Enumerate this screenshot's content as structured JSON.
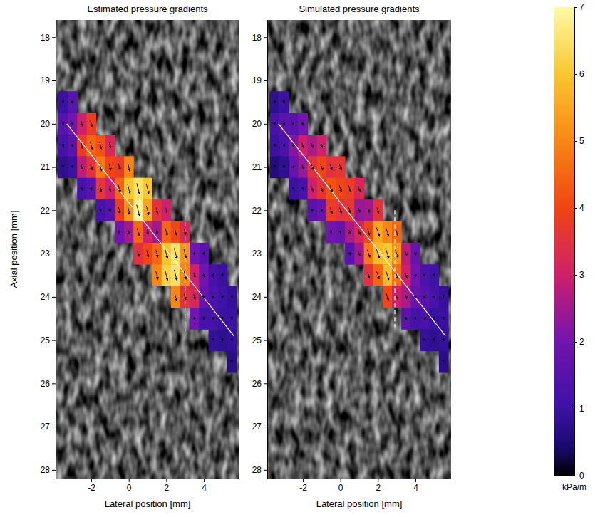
{
  "chart_data": [
    {
      "type": "heatmap",
      "title": "Estimated pressure gradients",
      "xlabel": "Lateral position [mm]",
      "ylabel": "Axial position [mm]",
      "xlim": [
        -3.9,
        5.9
      ],
      "ylim": [
        17.6,
        28.2
      ],
      "xticks": [
        -2,
        0,
        2,
        4
      ],
      "yticks": [
        18,
        19,
        20,
        21,
        22,
        23,
        24,
        25,
        26,
        27,
        28
      ],
      "cell_size": [
        0.5,
        0.5
      ],
      "arrow_direction": [
        0.6,
        1
      ],
      "centerline": [
        [
          -3.3,
          20.0
        ],
        [
          5.6,
          24.9
        ]
      ],
      "profile_line": [
        [
          3.0,
          22.1
        ],
        [
          3.0,
          24.8
        ]
      ],
      "cells": [
        [
          -3.5,
          19.5,
          1.0
        ],
        [
          -3.5,
          20,
          1.5
        ],
        [
          -3.5,
          20.5,
          1.2
        ],
        [
          -3.5,
          21,
          0.8
        ],
        [
          -3,
          19.5,
          1.5
        ],
        [
          -3,
          20,
          2.0
        ],
        [
          -3,
          20.5,
          1.6
        ],
        [
          -3,
          21,
          1.0
        ],
        [
          -2.5,
          20,
          3.0
        ],
        [
          -2.5,
          20.5,
          3.8
        ],
        [
          -2.5,
          21,
          2.8
        ],
        [
          -2.5,
          21.5,
          1.2
        ],
        [
          -2,
          20,
          3.8
        ],
        [
          -2,
          20.5,
          4.5
        ],
        [
          -2,
          21,
          3.5
        ],
        [
          -2,
          21.5,
          1.5
        ],
        [
          -1.5,
          20.5,
          4.2
        ],
        [
          -1.5,
          21,
          4.8
        ],
        [
          -1.5,
          21.5,
          3.6
        ],
        [
          -1.5,
          22,
          1.2
        ],
        [
          -1,
          20.5,
          3.2
        ],
        [
          -1,
          21,
          4.0
        ],
        [
          -1,
          21.5,
          3.0
        ],
        [
          -1,
          22,
          1.5
        ],
        [
          -0.5,
          21,
          3.8
        ],
        [
          -0.5,
          21.5,
          4.5
        ],
        [
          -0.5,
          22,
          3.8
        ],
        [
          -0.5,
          22.5,
          2.0
        ],
        [
          0,
          21,
          5.0
        ],
        [
          0,
          21.5,
          6.0
        ],
        [
          0,
          22,
          5.2
        ],
        [
          0,
          22.5,
          2.5
        ],
        [
          0.5,
          21.5,
          6.5
        ],
        [
          0.5,
          22,
          6.8
        ],
        [
          0.5,
          22.5,
          4.5
        ],
        [
          0.5,
          23,
          3.5
        ],
        [
          1,
          21.5,
          6.0
        ],
        [
          1,
          22,
          5.5
        ],
        [
          1,
          22.5,
          3.0
        ],
        [
          1,
          23,
          4.0
        ],
        [
          1.5,
          22,
          3.5
        ],
        [
          1.5,
          22.5,
          2.5
        ],
        [
          1.5,
          23,
          4.5
        ],
        [
          1.5,
          23.5,
          5.0
        ],
        [
          2,
          22,
          3.0
        ],
        [
          2,
          22.5,
          4.5
        ],
        [
          2,
          23,
          6.0
        ],
        [
          2,
          23.5,
          6.2
        ],
        [
          2.5,
          22.5,
          4.0
        ],
        [
          2.5,
          23,
          6.5
        ],
        [
          2.5,
          23.5,
          6.5
        ],
        [
          2.5,
          24,
          5.0
        ],
        [
          3,
          22.5,
          3.2
        ],
        [
          3,
          23,
          5.2
        ],
        [
          3,
          23.5,
          5.0
        ],
        [
          3,
          24,
          3.5
        ],
        [
          3.5,
          23,
          2.0
        ],
        [
          3.5,
          23.5,
          3.0
        ],
        [
          3.5,
          24,
          3.2
        ],
        [
          3.5,
          24.5,
          2.0
        ],
        [
          4,
          23,
          1.5
        ],
        [
          4,
          23.5,
          2.0
        ],
        [
          4,
          24,
          1.8
        ],
        [
          4,
          24.5,
          1.2
        ],
        [
          4.5,
          23.5,
          1.2
        ],
        [
          4.5,
          24,
          1.3
        ],
        [
          4.5,
          24.5,
          1.2
        ],
        [
          4.5,
          25,
          0.9
        ],
        [
          5,
          23.5,
          1.0
        ],
        [
          5,
          24,
          1.1
        ],
        [
          5,
          24.5,
          1.0
        ],
        [
          5,
          25,
          0.8
        ],
        [
          5.5,
          24,
          0.9
        ],
        [
          5.5,
          24.5,
          1.0
        ],
        [
          5.5,
          25,
          0.9
        ],
        [
          5.5,
          25.5,
          0.7
        ]
      ]
    },
    {
      "type": "heatmap",
      "title": "Simulated pressure gradients",
      "xlabel": "Lateral position [mm]",
      "xlim": [
        -3.9,
        5.9
      ],
      "ylim": [
        17.6,
        28.2
      ],
      "xticks": [
        -2,
        0,
        2,
        4
      ],
      "yticks": [
        18,
        19,
        20,
        21,
        22,
        23,
        24,
        25,
        26,
        27,
        28
      ],
      "cell_size": [
        0.5,
        0.5
      ],
      "arrow_direction": [
        0.8,
        1
      ],
      "centerline": [
        [
          -3.3,
          20.0
        ],
        [
          5.6,
          24.9
        ]
      ],
      "profile_line": [
        [
          2.9,
          22.0
        ],
        [
          2.9,
          24.7
        ]
      ],
      "cells": [
        [
          -3.5,
          19.5,
          0.8
        ],
        [
          -3.5,
          20,
          1.2
        ],
        [
          -3.5,
          20.5,
          1.0
        ],
        [
          -3.5,
          21,
          0.6
        ],
        [
          -3,
          19.5,
          1.0
        ],
        [
          -3,
          20,
          1.6
        ],
        [
          -3,
          20.5,
          1.3
        ],
        [
          -3,
          21,
          0.8
        ],
        [
          -2.5,
          20,
          1.5
        ],
        [
          -2.5,
          20.5,
          2.2
        ],
        [
          -2.5,
          21,
          1.8
        ],
        [
          -2.5,
          21.5,
          1.0
        ],
        [
          -2,
          20,
          2.0
        ],
        [
          -2,
          20.5,
          3.0
        ],
        [
          -2,
          21,
          2.4
        ],
        [
          -2,
          21.5,
          1.2
        ],
        [
          -1.5,
          20.5,
          2.6
        ],
        [
          -1.5,
          21,
          3.5
        ],
        [
          -1.5,
          21.5,
          3.0
        ],
        [
          -1.5,
          22,
          1.5
        ],
        [
          -1,
          20.5,
          3.0
        ],
        [
          -1,
          21,
          4.0
        ],
        [
          -1,
          21.5,
          3.6
        ],
        [
          -1,
          22,
          1.8
        ],
        [
          -0.5,
          21,
          3.5
        ],
        [
          -0.5,
          21.5,
          4.2
        ],
        [
          -0.5,
          22,
          3.8
        ],
        [
          -0.5,
          22.5,
          2.0
        ],
        [
          0,
          21,
          3.6
        ],
        [
          0,
          21.5,
          4.0
        ],
        [
          0,
          22,
          3.5
        ],
        [
          0,
          22.5,
          1.8
        ],
        [
          0.5,
          21.5,
          3.8
        ],
        [
          0.5,
          22,
          3.6
        ],
        [
          0.5,
          22.5,
          2.6
        ],
        [
          0.5,
          23,
          1.5
        ],
        [
          1,
          21.5,
          3.2
        ],
        [
          1,
          22,
          2.4
        ],
        [
          1,
          22.5,
          3.2
        ],
        [
          1,
          23,
          2.5
        ],
        [
          1.5,
          22,
          2.5
        ],
        [
          1.5,
          22.5,
          4.0
        ],
        [
          1.5,
          23,
          4.8
        ],
        [
          1.5,
          23.5,
          3.5
        ],
        [
          2,
          22,
          3.5
        ],
        [
          2,
          22.5,
          5.5
        ],
        [
          2,
          23,
          5.8
        ],
        [
          2,
          23.5,
          4.5
        ],
        [
          2.5,
          22.5,
          5.0
        ],
        [
          2.5,
          23,
          6.0
        ],
        [
          2.5,
          23.5,
          5.8
        ],
        [
          2.5,
          24,
          4.0
        ],
        [
          3,
          22.5,
          4.5
        ],
        [
          3,
          23,
          5.2
        ],
        [
          3,
          23.5,
          4.6
        ],
        [
          3,
          24,
          3.0
        ],
        [
          3.5,
          23,
          2.8
        ],
        [
          3.5,
          23.5,
          3.0
        ],
        [
          3.5,
          24,
          2.6
        ],
        [
          3.5,
          24.5,
          1.6
        ],
        [
          4,
          23,
          1.8
        ],
        [
          4,
          23.5,
          2.0
        ],
        [
          4,
          24,
          1.8
        ],
        [
          4,
          24.5,
          1.2
        ],
        [
          4.5,
          23.5,
          1.3
        ],
        [
          4.5,
          24,
          1.5
        ],
        [
          4.5,
          24.5,
          1.3
        ],
        [
          4.5,
          25,
          0.9
        ],
        [
          5,
          23.5,
          1.1
        ],
        [
          5,
          24,
          1.2
        ],
        [
          5,
          24.5,
          1.0
        ],
        [
          5,
          25,
          0.8
        ],
        [
          5.5,
          24,
          0.9
        ],
        [
          5.5,
          24.5,
          1.0
        ],
        [
          5.5,
          25,
          0.9
        ],
        [
          5.5,
          25.5,
          0.7
        ]
      ],
      "colorbar": {
        "range": [
          0,
          7
        ],
        "ticks": [
          0,
          1,
          2,
          3,
          4,
          5,
          6,
          7
        ],
        "label": "kPa/m"
      }
    }
  ]
}
